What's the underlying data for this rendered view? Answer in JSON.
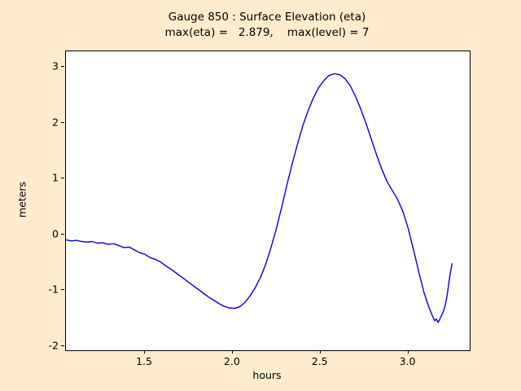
{
  "figure": {
    "background_color": "#ffebcd",
    "plot_background_color": "#ffffff",
    "axis_color": "#000000"
  },
  "chart_data": {
    "type": "line",
    "title": "Gauge 850 : Surface Elevation (eta)",
    "subtitle": "max(eta) =   2.879,    max(level) = 7",
    "xlabel": "hours",
    "ylabel": "meters",
    "xlim": [
      1.05,
      3.35
    ],
    "ylim": [
      -2.08,
      3.28
    ],
    "xticks": [
      1.5,
      2.0,
      2.5,
      3.0
    ],
    "xtick_labels": [
      "1.5",
      "2.0",
      "2.5",
      "3.0"
    ],
    "yticks": [
      -2,
      -1,
      0,
      1,
      2,
      3
    ],
    "ytick_labels": [
      "-2",
      "-1",
      "0",
      "1",
      "2",
      "3"
    ],
    "grid": false,
    "legend": "none",
    "line_color": "#0000dd",
    "max_eta": 2.879,
    "max_level": 7,
    "series": [
      {
        "name": "eta",
        "x": [
          1.05,
          1.08,
          1.11,
          1.14,
          1.17,
          1.2,
          1.23,
          1.26,
          1.29,
          1.32,
          1.35,
          1.38,
          1.41,
          1.44,
          1.47,
          1.5,
          1.53,
          1.56,
          1.59,
          1.62,
          1.65,
          1.68,
          1.71,
          1.74,
          1.77,
          1.8,
          1.83,
          1.86,
          1.89,
          1.92,
          1.95,
          1.98,
          2.01,
          2.04,
          2.07,
          2.1,
          2.13,
          2.16,
          2.19,
          2.22,
          2.25,
          2.28,
          2.31,
          2.34,
          2.37,
          2.4,
          2.43,
          2.46,
          2.49,
          2.52,
          2.55,
          2.58,
          2.61,
          2.64,
          2.67,
          2.7,
          2.73,
          2.76,
          2.79,
          2.82,
          2.85,
          2.88,
          2.91,
          2.94,
          2.97,
          3.0,
          3.03,
          3.06,
          3.09,
          3.12,
          3.14,
          3.15,
          3.16,
          3.17,
          3.18,
          3.19,
          3.2,
          3.21,
          3.22,
          3.23,
          3.24,
          3.25
        ],
        "y": [
          -0.1,
          -0.12,
          -0.11,
          -0.13,
          -0.14,
          -0.13,
          -0.16,
          -0.15,
          -0.18,
          -0.17,
          -0.2,
          -0.24,
          -0.23,
          -0.28,
          -0.33,
          -0.36,
          -0.42,
          -0.45,
          -0.5,
          -0.57,
          -0.63,
          -0.7,
          -0.77,
          -0.84,
          -0.91,
          -0.98,
          -1.05,
          -1.12,
          -1.18,
          -1.24,
          -1.29,
          -1.32,
          -1.33,
          -1.3,
          -1.22,
          -1.1,
          -0.95,
          -0.76,
          -0.52,
          -0.22,
          0.12,
          0.5,
          0.9,
          1.28,
          1.63,
          1.95,
          2.22,
          2.45,
          2.63,
          2.76,
          2.85,
          2.879,
          2.86,
          2.79,
          2.66,
          2.47,
          2.24,
          1.98,
          1.7,
          1.42,
          1.16,
          0.94,
          0.78,
          0.62,
          0.4,
          0.1,
          -0.28,
          -0.68,
          -1.05,
          -1.33,
          -1.48,
          -1.55,
          -1.52,
          -1.58,
          -1.52,
          -1.45,
          -1.38,
          -1.28,
          -1.12,
          -0.9,
          -0.68,
          -0.52
        ]
      }
    ]
  }
}
